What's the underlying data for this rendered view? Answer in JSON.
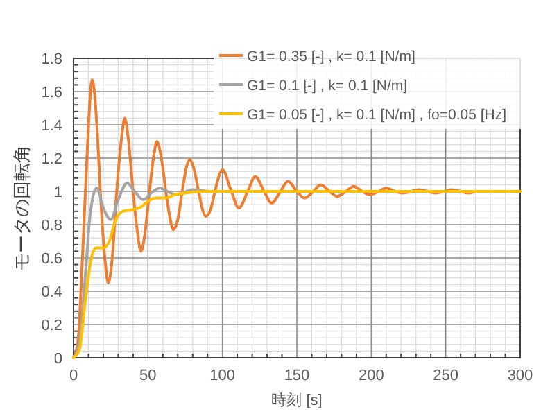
{
  "chart_data": {
    "type": "line",
    "xlabel": "時刻 [s]",
    "ylabel": "モータの回転角",
    "xlim": [
      0,
      300
    ],
    "xticks": [
      0,
      50,
      100,
      150,
      200,
      250,
      300
    ],
    "ylim": [
      0,
      1.8
    ],
    "yticks": [
      0,
      0.2,
      0.4,
      0.6,
      0.8,
      1,
      1.2,
      1.4,
      1.6,
      1.8
    ],
    "grid": true,
    "legend": "top right",
    "line_style": "solid",
    "marker": "none",
    "series": [
      {
        "name": "G1= 0.35 [-] , k= 0.1 [N/m]",
        "color": "#ed7d31",
        "x": [
          0,
          3,
          6,
          9,
          12.5,
          16,
          18,
          21,
          23.4,
          26,
          29,
          32,
          34.4,
          37,
          40,
          43,
          45.3,
          48,
          51,
          54,
          56,
          59,
          62,
          65,
          67,
          70,
          73,
          76,
          78,
          81,
          84,
          87,
          89,
          92,
          95,
          98,
          100,
          106,
          111,
          117,
          122,
          128,
          133,
          139,
          144,
          150,
          155,
          161,
          166,
          172,
          177,
          183,
          188,
          194,
          199,
          205,
          210,
          216,
          221,
          227,
          232,
          238,
          243,
          249,
          254,
          260,
          265,
          271,
          276,
          300
        ],
        "values": [
          0,
          0.1,
          0.6,
          1.2,
          1.67,
          1.35,
          1.0,
          0.6,
          0.45,
          0.6,
          1.0,
          1.3,
          1.44,
          1.3,
          1.0,
          0.75,
          0.64,
          0.75,
          1.0,
          1.22,
          1.3,
          1.2,
          1.0,
          0.83,
          0.77,
          0.83,
          1.0,
          1.15,
          1.19,
          1.13,
          1.0,
          0.88,
          0.85,
          0.89,
          1.0,
          1.1,
          1.13,
          1.0,
          0.9,
          1.0,
          1.09,
          1.0,
          0.93,
          1.0,
          1.06,
          1.0,
          0.96,
          1.0,
          1.04,
          1.0,
          0.97,
          1.0,
          1.03,
          1.0,
          0.98,
          1.0,
          1.02,
          1.0,
          0.99,
          1.0,
          1.01,
          1.0,
          0.99,
          1.0,
          1.01,
          1.0,
          0.99,
          1.0,
          1.0,
          1.0
        ]
      },
      {
        "name": "G1= 0.1 [-] , k= 0.1 [N/m]",
        "color": "#a5a5a5",
        "x": [
          0,
          4,
          8,
          11,
          15.6,
          20,
          25,
          30,
          36,
          41,
          47,
          52,
          58,
          63,
          69,
          80,
          90
        ],
        "values": [
          0,
          0.1,
          0.5,
          0.85,
          1.02,
          0.9,
          0.83,
          0.95,
          1.05,
          1.0,
          0.95,
          0.99,
          1.02,
          1.0,
          0.98,
          1.01,
          1.0
        ]
      },
      {
        "name": "G1= 0.05 [-] , k= 0.1 [N/m] , fo=0.05 [Hz]",
        "color": "#ffc000",
        "x": [
          0,
          4,
          8,
          12,
          15,
          20,
          24,
          28,
          33,
          40,
          46,
          50,
          55,
          62,
          68,
          75,
          90,
          100,
          300
        ],
        "values": [
          0,
          0.05,
          0.35,
          0.6,
          0.66,
          0.66,
          0.7,
          0.82,
          0.88,
          0.89,
          0.91,
          0.94,
          0.96,
          0.96,
          0.98,
          0.99,
          1.0,
          1.0,
          1.0
        ]
      }
    ]
  }
}
